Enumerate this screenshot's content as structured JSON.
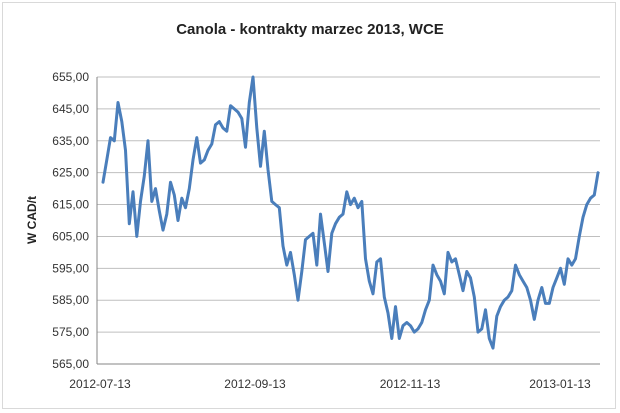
{
  "chart_data": {
    "type": "line",
    "title": "Canola - kontrakty marzec 2013, WCE",
    "ylabel": "W CAD/t",
    "xlabel": "",
    "ylim": [
      565,
      655
    ],
    "yticks": [
      565,
      575,
      585,
      595,
      605,
      615,
      625,
      635,
      645,
      655
    ],
    "ytick_labels": [
      "565,00",
      "575,00",
      "585,00",
      "595,00",
      "605,00",
      "615,00",
      "625,00",
      "635,00",
      "645,00",
      "655,00"
    ],
    "x_tick_labels": [
      "2012-07-13",
      "2012-09-13",
      "2012-11-13",
      "2013-01-13"
    ],
    "grid": true,
    "series": [
      {
        "color": "#4a7ebb",
        "values": [
          622,
          629,
          636,
          635,
          647,
          641,
          632,
          609,
          619,
          605,
          616,
          624,
          635,
          616,
          620,
          613,
          607,
          612,
          622,
          618,
          610,
          617,
          614,
          620,
          629,
          636,
          628,
          629,
          632,
          634,
          640,
          641,
          639,
          638,
          646,
          645,
          644,
          642,
          633,
          647,
          655,
          639,
          627,
          638,
          626,
          616,
          615,
          614,
          602,
          596,
          600,
          593,
          585,
          594,
          604,
          605,
          606,
          596,
          612,
          603,
          594,
          606,
          609,
          611,
          612,
          619,
          615,
          617,
          614,
          616,
          598,
          591,
          587,
          597,
          598,
          586,
          581,
          573,
          583,
          573,
          577,
          578,
          577,
          575,
          576,
          578,
          582,
          585,
          596,
          593,
          591,
          587,
          600,
          597,
          598,
          593,
          588,
          594,
          592,
          586,
          575,
          576,
          582,
          573,
          570,
          580,
          583,
          585,
          586,
          588,
          596,
          593,
          591,
          589,
          585,
          579,
          585,
          589,
          584,
          584,
          589,
          592,
          595,
          590,
          598,
          596,
          598,
          605,
          611,
          615,
          617,
          618,
          625
        ]
      }
    ]
  }
}
